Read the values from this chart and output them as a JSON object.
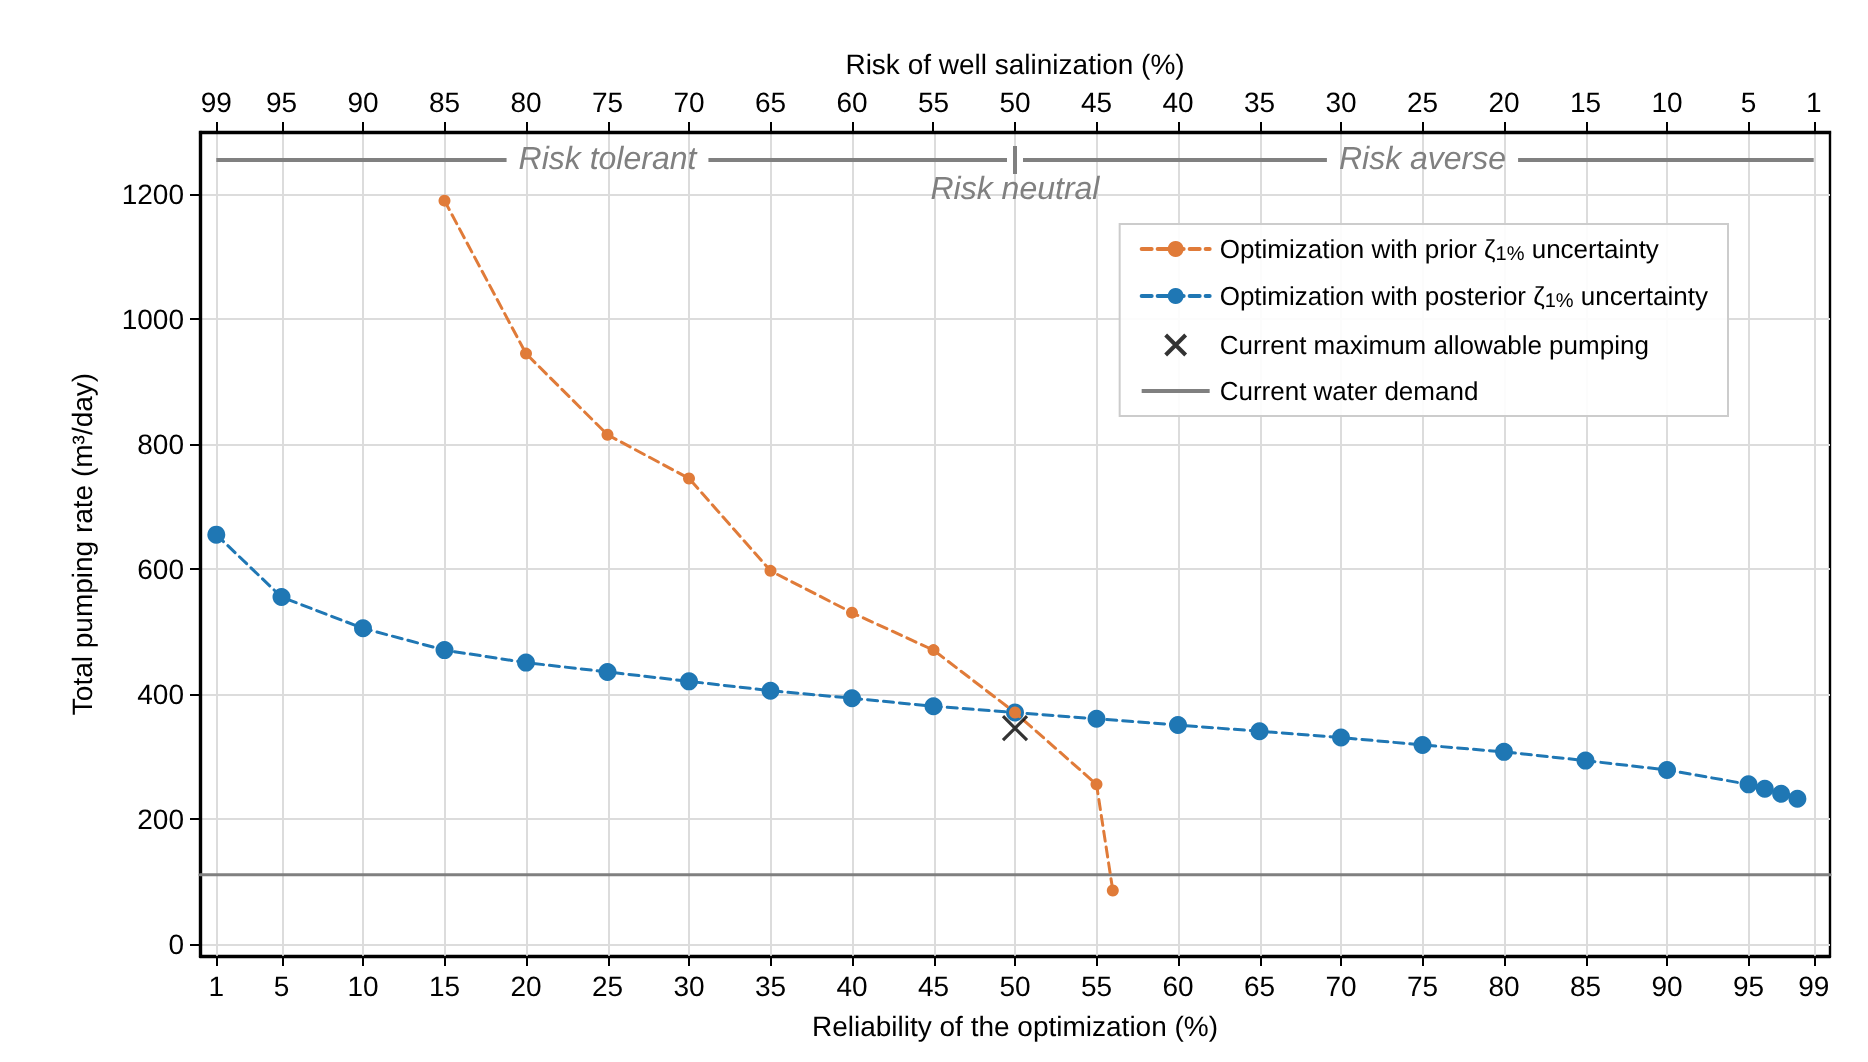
{
  "chart_data": {
    "type": "line",
    "xlabel": "Reliability of the optimization (%)",
    "x2label": "Risk of well salinization (%)",
    "ylabel": "Total pumping rate (m³/day)",
    "xlim": [
      0,
      100
    ],
    "xticks": [
      1,
      5,
      10,
      15,
      20,
      25,
      30,
      35,
      40,
      45,
      50,
      55,
      60,
      65,
      70,
      75,
      80,
      85,
      90,
      95,
      99
    ],
    "x2lim": [
      100,
      0
    ],
    "x2ticks": [
      99,
      95,
      90,
      85,
      80,
      75,
      70,
      65,
      60,
      55,
      50,
      45,
      40,
      35,
      30,
      25,
      20,
      15,
      10,
      5,
      1
    ],
    "ylim": [
      -20,
      1300
    ],
    "yticks": [
      0,
      200,
      400,
      600,
      800,
      1000,
      1200
    ],
    "grid": true,
    "legend": "top right",
    "series": [
      {
        "name": "Optimization with prior ζ$_{1%}$ uncertainty",
        "color": "#e07b39",
        "marker": "circle",
        "line_style": "dashed",
        "x": [
          15,
          20,
          25,
          30,
          35,
          40,
          45,
          50,
          55,
          56
        ],
        "values": [
          1190,
          945,
          815,
          745,
          597,
          530,
          470,
          370,
          255,
          85
        ]
      },
      {
        "name": "Optimization with posterior ζ$_{1%}$ uncertainty",
        "color": "#1f77b4",
        "marker": "circle",
        "line_style": "dashed",
        "x": [
          1,
          5,
          10,
          15,
          20,
          25,
          30,
          35,
          40,
          45,
          50,
          55,
          60,
          65,
          70,
          75,
          80,
          85,
          90,
          95,
          96,
          97,
          98
        ],
        "values": [
          655,
          555,
          505,
          470,
          450,
          435,
          420,
          405,
          393,
          380,
          370,
          360,
          350,
          340,
          330,
          318,
          307,
          293,
          278,
          255,
          248,
          240,
          232
        ]
      },
      {
        "name": "Current maximum allowable pumping",
        "type": "scatter",
        "color": "#000000",
        "marker": "cross",
        "x": [
          50
        ],
        "values": [
          345
        ]
      },
      {
        "name": "Current water demand",
        "color": "#808080",
        "marker": "none",
        "line_style": "solid",
        "x": [
          0,
          100
        ],
        "values": [
          110,
          110
        ]
      }
    ],
    "annotations": [
      "Risk tolerant",
      "Risk neutral",
      "Risk averse"
    ]
  }
}
